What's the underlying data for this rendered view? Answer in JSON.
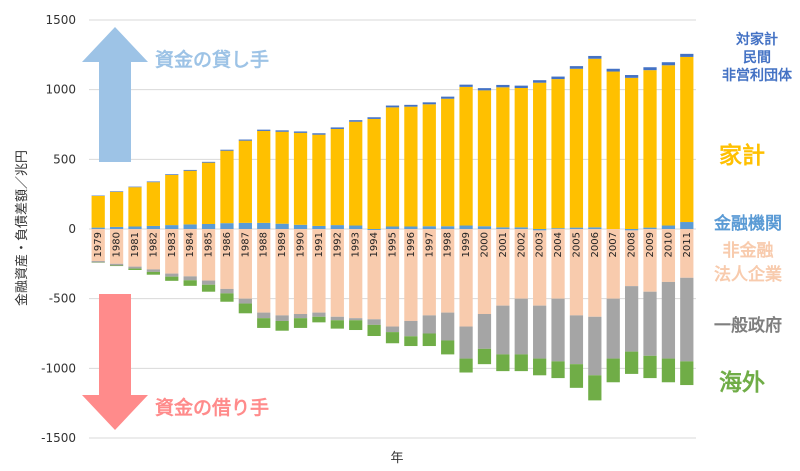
{
  "chart_data": {
    "type": "bar",
    "stacked": true,
    "xlabel": "年",
    "ylabel": "金融資産・負債差額／兆円",
    "ylim": [
      -1500,
      1500
    ],
    "yticks": [
      -1500,
      -1000,
      -500,
      0,
      500,
      1000,
      1500
    ],
    "grid": true,
    "categories": [
      "1979",
      "1980",
      "1981",
      "1982",
      "1983",
      "1984",
      "1985",
      "1986",
      "1987",
      "1988",
      "1989",
      "1990",
      "1991",
      "1992",
      "1993",
      "1994",
      "1995",
      "1996",
      "1997",
      "1998",
      "1999",
      "2000",
      "2001",
      "2002",
      "2003",
      "2004",
      "2005",
      "2006",
      "2007",
      "2008",
      "2009",
      "2010",
      "2011"
    ],
    "series": [
      {
        "name": "対家計民間非営利団体",
        "color": "#4472c4",
        "values": [
          3,
          4,
          4,
          5,
          5,
          6,
          6,
          7,
          8,
          9,
          10,
          10,
          10,
          11,
          11,
          12,
          13,
          13,
          14,
          15,
          16,
          16,
          17,
          17,
          18,
          18,
          19,
          20,
          20,
          20,
          21,
          22,
          22
        ]
      },
      {
        "name": "家計",
        "color": "#ffc000",
        "values": [
          227,
          252,
          282,
          314,
          360,
          385,
          440,
          520,
          590,
          660,
          660,
          660,
          655,
          690,
          745,
          790,
          855,
          860,
          875,
          915,
          995,
          975,
          1005,
          1000,
          1050,
          1070,
          1140,
          1210,
          1130,
          1085,
          1130,
          1150,
          1185
        ]
      },
      {
        "name": "金融機関",
        "color": "#5b9bd5",
        "values": [
          10,
          15,
          18,
          22,
          28,
          33,
          36,
          42,
          44,
          44,
          38,
          30,
          22,
          28,
          25,
          -8,
          18,
          18,
          20,
          20,
          25,
          20,
          12,
          12,
          -10,
          6,
          10,
          12,
          0,
          -10,
          10,
          25,
          50
        ]
      },
      {
        "name": "非金融法人企業",
        "color": "#f8cbad",
        "values": [
          -230,
          -250,
          -270,
          -290,
          -320,
          -340,
          -370,
          -430,
          -500,
          -600,
          -620,
          -610,
          -600,
          -630,
          -640,
          -640,
          -700,
          -660,
          -620,
          -600,
          -700,
          -610,
          -550,
          -500,
          -540,
          -500,
          -620,
          -630,
          -500,
          -400,
          -450,
          -380,
          -350
        ]
      },
      {
        "name": "一般政府",
        "color": "#a5a5a5",
        "values": [
          -10,
          -12,
          -14,
          -18,
          -22,
          -28,
          -30,
          -32,
          -35,
          -40,
          -40,
          -30,
          -30,
          -25,
          -15,
          -40,
          -40,
          -110,
          -130,
          -200,
          -230,
          -250,
          -350,
          -400,
          -380,
          -450,
          -350,
          -420,
          -430,
          -470,
          -460,
          -550,
          -600
        ]
      },
      {
        "name": "海外",
        "color": "#70ad47",
        "values": [
          -2,
          -4,
          -10,
          -20,
          -30,
          -40,
          -50,
          -60,
          -70,
          -70,
          -70,
          -70,
          -40,
          -60,
          -70,
          -80,
          -80,
          -70,
          -90,
          -100,
          -100,
          -110,
          -120,
          -120,
          -120,
          -120,
          -170,
          -180,
          -170,
          -160,
          -160,
          -170,
          -170
        ]
      }
    ],
    "annotations": {
      "lender": "資金の貸し手",
      "borrower": "資金の借り手"
    }
  },
  "legend": {
    "npish": [
      "対家計",
      "民間",
      "非営利団体"
    ],
    "household": "家計",
    "financial": "金融機関",
    "corporate": [
      "非金融",
      "法人企業"
    ],
    "government": "一般政府",
    "overseas": "海外"
  },
  "colors": {
    "lender_arrow": "#9dc3e6",
    "borrower_arrow": "#ff8b8b",
    "grid": "#d9d9d9"
  }
}
